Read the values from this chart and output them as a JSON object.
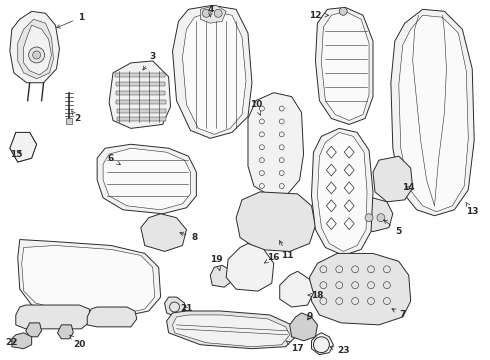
{
  "background_color": "#ffffff",
  "line_color": "#2a2a2a",
  "label_color": "#000000",
  "figsize": [
    4.9,
    3.6
  ],
  "dpi": 100,
  "label_fontsize": 6.5,
  "lw_main": 0.7,
  "lw_thin": 0.4,
  "fc_light": "#f2f2f2",
  "fc_mid": "#e5e5e5",
  "fc_dark": "#d0d0d0",
  "fc_white": "#fafafa"
}
